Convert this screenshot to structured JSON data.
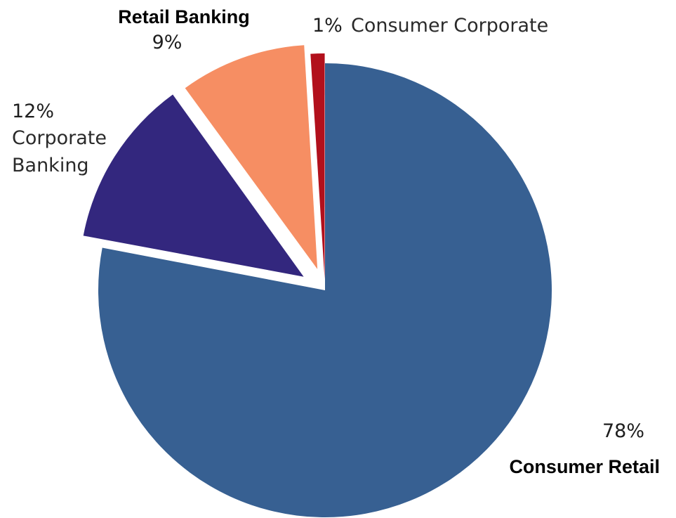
{
  "chart_data": {
    "type": "pie",
    "title": "",
    "start_angle_deg": 0,
    "direction": "clockwise",
    "exploded": true,
    "slices": [
      {
        "name": "Consumer Retail",
        "value": 78,
        "label": "78%",
        "color": "#376092"
      },
      {
        "name": "Corporate Banking",
        "value": 12,
        "label": "12%",
        "name_lines": [
          "Corporate",
          "Banking"
        ],
        "color": "#33277e"
      },
      {
        "name": "Retail Banking",
        "value": 9,
        "label": "9%",
        "color": "#f68e63"
      },
      {
        "name": "Consumer Corporate",
        "value": 1,
        "label": "1%",
        "color": "#b2101c"
      }
    ]
  }
}
